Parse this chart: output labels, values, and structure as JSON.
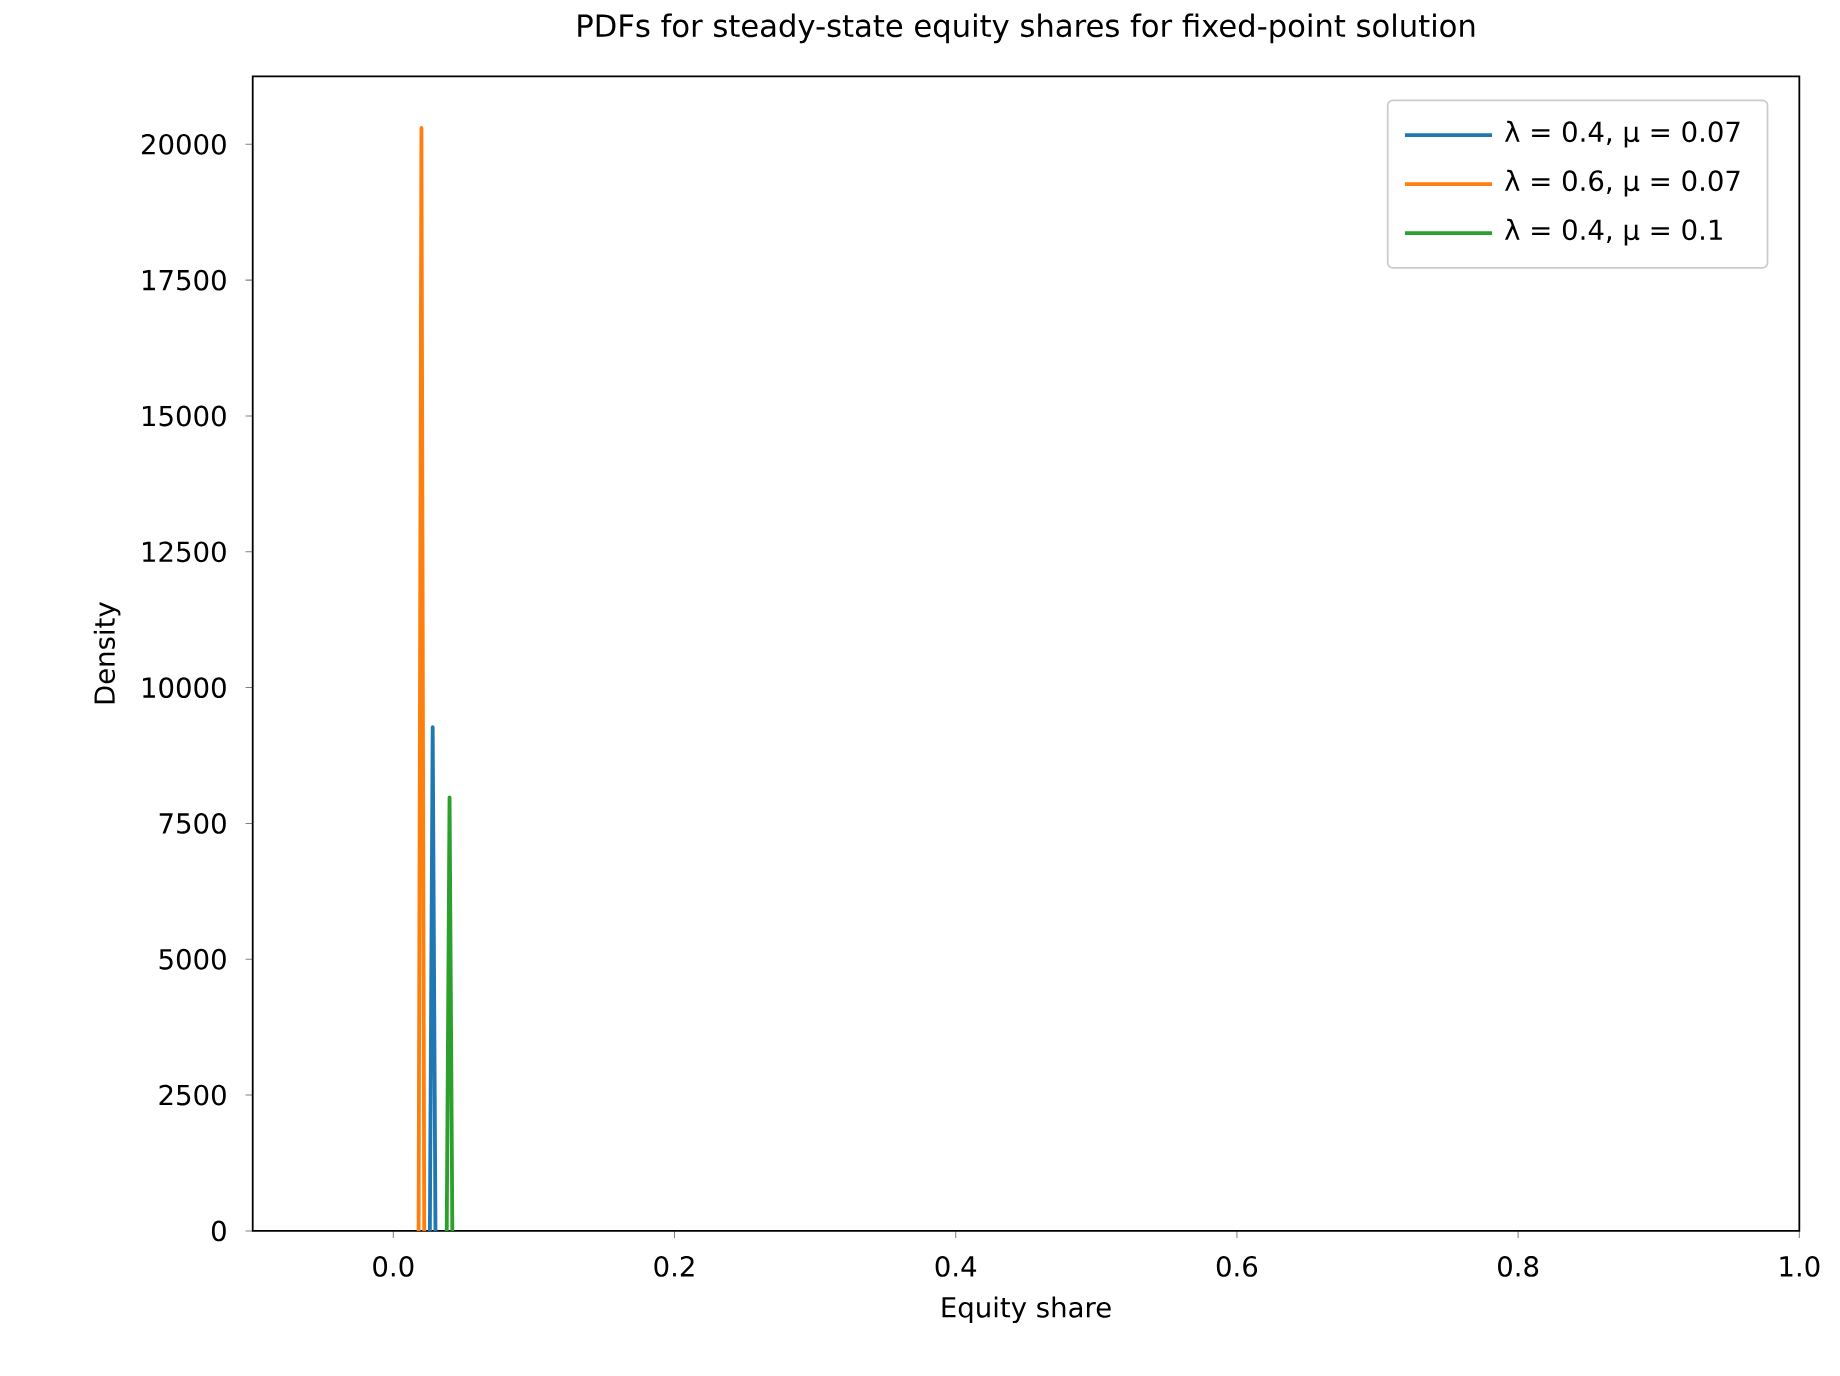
{
  "chart_data": {
    "type": "line",
    "title": "PDFs for steady-state equity shares for fixed-point solution",
    "xlabel": "Equity share",
    "ylabel": "Density",
    "series": [
      {
        "name": "λ = 0.4, μ = 0.07",
        "color": "#1f77b4",
        "x": [
          0.026,
          0.028,
          0.03
        ],
        "values": [
          0,
          9270,
          0
        ]
      },
      {
        "name": "λ = 0.6, μ = 0.07",
        "color": "#ff7f0e",
        "x": [
          0.018,
          0.02,
          0.022
        ],
        "values": [
          0,
          20300,
          0
        ]
      },
      {
        "name": "λ = 0.4, μ = 0.1",
        "color": "#2ca02c",
        "x": [
          0.038,
          0.04,
          0.042
        ],
        "values": [
          0,
          7980,
          0
        ]
      }
    ],
    "xlim": [
      -0.1,
      1.0
    ],
    "ylim": [
      0,
      21250
    ],
    "xticks": [
      {
        "value": 0,
        "label": "0.0"
      },
      0.2,
      0.4,
      0.6,
      0.8,
      {
        "value": 1,
        "label": "1.0"
      }
    ],
    "yticks": [
      0,
      2500,
      5000,
      7500,
      10000,
      12500,
      15000,
      17500,
      20000
    ],
    "legend": "top right",
    "grid": false
  }
}
